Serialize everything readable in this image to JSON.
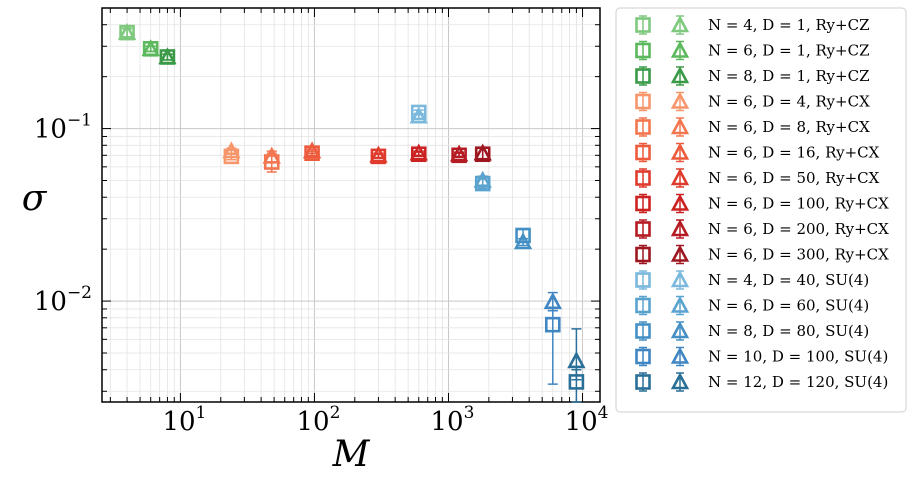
{
  "chart_data": {
    "type": "scatter",
    "xscale": "log",
    "yscale": "log",
    "xlim": [
      2.6,
      13500
    ],
    "ylim": [
      0.0026,
      0.5
    ],
    "xlabel": "M",
    "ylabel": "σ",
    "grid": true,
    "legend_position": "outside-right",
    "x_ticks": [
      {
        "base": "10",
        "exp": "1",
        "value": 10
      },
      {
        "base": "10",
        "exp": "2",
        "value": 100
      },
      {
        "base": "10",
        "exp": "3",
        "value": 1000
      },
      {
        "base": "10",
        "exp": "4",
        "value": 10000
      }
    ],
    "y_ticks": [
      {
        "base": "10",
        "exp": "−2",
        "value": 0.01
      },
      {
        "base": "10",
        "exp": "−1",
        "value": 0.1
      }
    ],
    "marker_legend": [
      "square",
      "triangle"
    ],
    "series": [
      {
        "name": "N = 4, D = 1, Ry+CZ",
        "color": "#7fc97f",
        "x": 4,
        "square": 0.36,
        "triangle": 0.36,
        "sq_err": [
          0.34,
          0.38
        ],
        "tri_err": [
          0.34,
          0.38
        ]
      },
      {
        "name": "N = 6, D = 1, Ry+CZ",
        "color": "#5cb85c",
        "x": 6,
        "square": 0.29,
        "triangle": 0.29,
        "sq_err": [
          0.28,
          0.3
        ],
        "tri_err": [
          0.28,
          0.3
        ]
      },
      {
        "name": "N = 8, D = 1, Ry+CZ",
        "color": "#3a9a47",
        "x": 8,
        "square": 0.26,
        "triangle": 0.26,
        "sq_err": [
          0.25,
          0.27
        ],
        "tri_err": [
          0.25,
          0.27
        ]
      },
      {
        "name": "N = 6, D = 4, Ry+CX",
        "color": "#f7966b",
        "x": 24,
        "square": 0.069,
        "triangle": 0.074,
        "sq_err": [
          0.066,
          0.072
        ],
        "tri_err": [
          0.071,
          0.077
        ]
      },
      {
        "name": "N = 6, D = 8, Ry+CX",
        "color": "#f3764f",
        "x": 48,
        "square": 0.064,
        "triangle": 0.069,
        "sq_err": [
          0.056,
          0.072
        ],
        "tri_err": [
          0.064,
          0.074
        ]
      },
      {
        "name": "N = 6, D = 16, Ry+CX",
        "color": "#ee5a3c",
        "x": 96,
        "square": 0.072,
        "triangle": 0.074,
        "sq_err": [
          0.07,
          0.074
        ],
        "tri_err": [
          0.072,
          0.076
        ]
      },
      {
        "name": "N = 6, D = 50, Ry+CX",
        "color": "#e03a2d",
        "x": 300,
        "square": 0.069,
        "triangle": 0.07,
        "sq_err": [
          0.067,
          0.071
        ],
        "tri_err": [
          0.068,
          0.072
        ]
      },
      {
        "name": "N = 6, D = 100, Ry+CX",
        "color": "#cc2222",
        "x": 600,
        "square": 0.071,
        "triangle": 0.072,
        "sq_err": [
          0.069,
          0.073
        ],
        "tri_err": [
          0.07,
          0.074
        ]
      },
      {
        "name": "N = 6, D = 200, Ry+CX",
        "color": "#b51b22",
        "x": 1200,
        "square": 0.07,
        "triangle": 0.071,
        "sq_err": [
          0.068,
          0.072
        ],
        "tri_err": [
          0.069,
          0.073
        ]
      },
      {
        "name": "N = 6, D = 300, Ry+CX",
        "color": "#9e1720",
        "x": 1800,
        "square": 0.071,
        "triangle": 0.072,
        "sq_err": [
          0.065,
          0.077
        ],
        "tri_err": [
          0.066,
          0.078
        ]
      },
      {
        "name": "N = 4, D = 40, SU(4)",
        "color": "#7ab8dc",
        "x": 600,
        "square": 0.124,
        "triangle": 0.118,
        "sq_err": [
          0.12,
          0.128
        ],
        "tri_err": [
          0.114,
          0.122
        ]
      },
      {
        "name": "N = 6, D = 60, SU(4)",
        "color": "#5aa3cf",
        "x": 1800,
        "square": 0.048,
        "triangle": 0.05,
        "sq_err": [
          0.045,
          0.051
        ],
        "tri_err": [
          0.047,
          0.053
        ]
      },
      {
        "name": "N = 8, D = 80, SU(4)",
        "color": "#4490c4",
        "x": 3600,
        "square": 0.024,
        "triangle": 0.022,
        "sq_err": [
          0.022,
          0.026
        ],
        "tri_err": [
          0.021,
          0.023
        ]
      },
      {
        "name": "N = 10, D = 100, SU(4)",
        "color": "#3f86c2",
        "x": 6000,
        "square": 0.0073,
        "triangle": 0.0099,
        "sq_err": [
          0.0033,
          0.0088
        ],
        "tri_err": [
          0.0088,
          0.0112
        ]
      },
      {
        "name": "N = 12, D = 120, SU(4)",
        "color": "#2a6f97",
        "x": 9000,
        "square": 0.0034,
        "triangle": 0.0045,
        "sq_err": [
          0.0026,
          0.004
        ],
        "tri_err": [
          0.0035,
          0.0069
        ]
      }
    ]
  }
}
